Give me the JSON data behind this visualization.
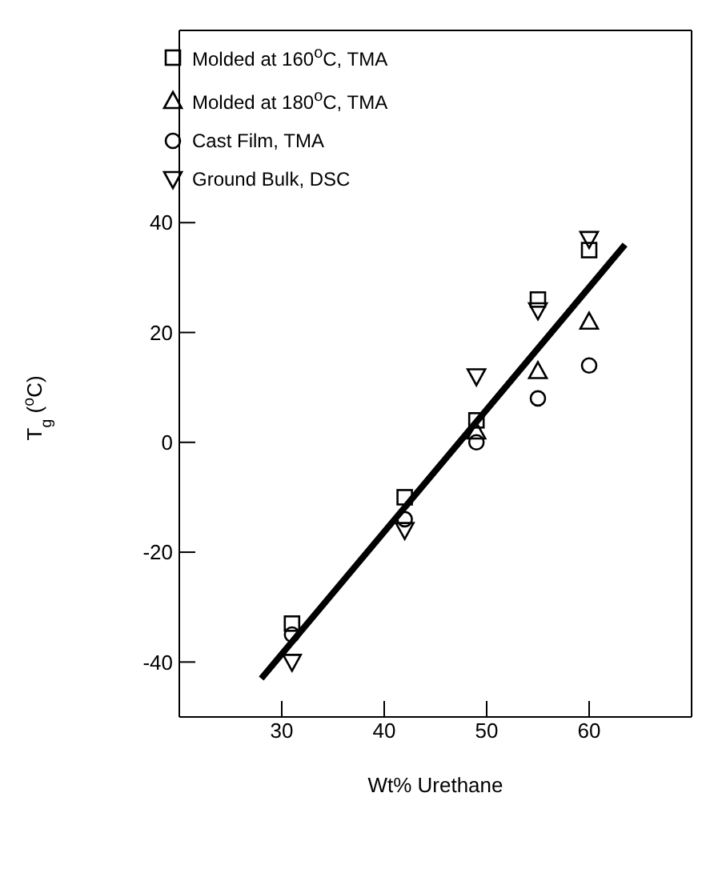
{
  "chart_data": {
    "type": "scatter",
    "xlabel": "Wt% Urethane",
    "ylabel": "T$_{g}$ ($^{o}$C)",
    "xlim": [
      20,
      70
    ],
    "ylim": [
      -50,
      75
    ],
    "xticks": [
      30,
      40,
      50,
      60
    ],
    "yticks": [
      -40,
      -20,
      0,
      20,
      40
    ],
    "legend": "top left",
    "series": [
      {
        "name": "Molded at 160$^{o}$C, TMA",
        "color": "#000000",
        "marker": "square",
        "x": [
          31,
          42,
          49,
          55,
          60
        ],
        "values": [
          -33,
          -10,
          4,
          26,
          35
        ]
      },
      {
        "name": "Molded at 180$^{o}$C, TMA",
        "color": "#000000",
        "marker": "triangle",
        "x": [
          49,
          55,
          60
        ],
        "values": [
          2,
          13,
          22
        ]
      },
      {
        "name": "Cast Film, TMA",
        "color": "#000000",
        "marker": "circle",
        "x": [
          31,
          42,
          49,
          55,
          60
        ],
        "values": [
          -35,
          -14,
          0,
          8,
          14
        ]
      },
      {
        "name": "Ground Bulk, DSC",
        "color": "#000000",
        "marker": "triangle-down",
        "x": [
          31,
          42,
          49,
          55,
          60
        ],
        "values": [
          -40,
          -16,
          12,
          24,
          37
        ]
      },
      {
        "type": "line",
        "color": "#000000",
        "marker": "none",
        "line_style": "solid",
        "x": [
          28,
          63.5
        ],
        "values": [
          -43,
          36
        ]
      }
    ]
  }
}
